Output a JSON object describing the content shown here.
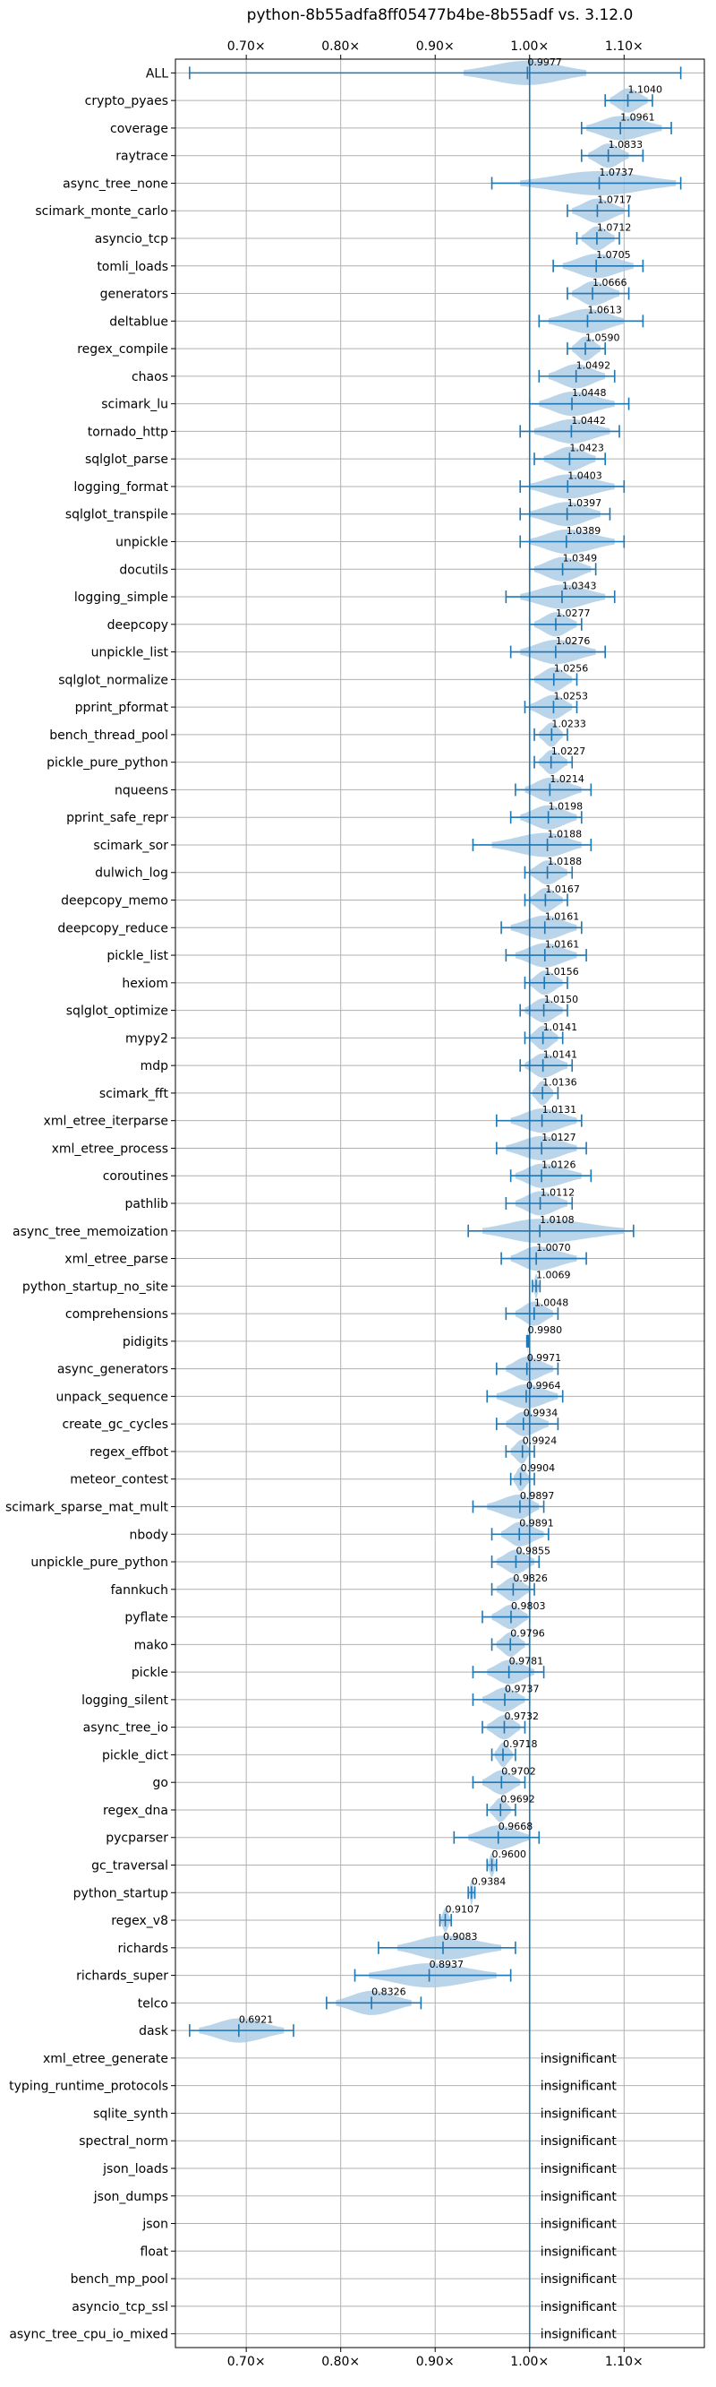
{
  "chart_data": {
    "type": "violin",
    "title": "python-8b55adfa8ff05477b4be-8b55adf vs. 3.12.0",
    "xlabel": "",
    "ylabel": "",
    "xlim": [
      0.625,
      1.185
    ],
    "xticks": [
      0.7,
      0.8,
      0.9,
      1.0,
      1.1
    ],
    "xtick_labels": [
      "0.70×",
      "0.80×",
      "0.90×",
      "1.00×",
      "1.10×"
    ],
    "reference_line": 1.0,
    "grid": true,
    "colors": {
      "violin": "#a9c9e5",
      "bars": "#1f77b4",
      "grid": "#b0b0b0"
    },
    "insignificant_label": "insignificant",
    "benchmarks": [
      {
        "name": "ALL",
        "label": "0.9977",
        "mean": 0.9977,
        "min": 0.64,
        "max": 1.16,
        "lo": 0.93,
        "hi": 1.06
      },
      {
        "name": "crypto_pyaes",
        "label": "1.1040",
        "mean": 1.104,
        "min": 1.08,
        "max": 1.13,
        "lo": 1.085,
        "hi": 1.125
      },
      {
        "name": "coverage",
        "label": "1.0961",
        "mean": 1.0961,
        "min": 1.055,
        "max": 1.15,
        "lo": 1.06,
        "hi": 1.14
      },
      {
        "name": "raytrace",
        "label": "1.0833",
        "mean": 1.0833,
        "min": 1.055,
        "max": 1.12,
        "lo": 1.062,
        "hi": 1.105
      },
      {
        "name": "async_tree_none",
        "label": "1.0737",
        "mean": 1.0737,
        "min": 0.96,
        "max": 1.16,
        "lo": 0.99,
        "hi": 1.155
      },
      {
        "name": "scimark_monte_carlo",
        "label": "1.0717",
        "mean": 1.0717,
        "min": 1.04,
        "max": 1.105,
        "lo": 1.045,
        "hi": 1.1
      },
      {
        "name": "asyncio_tcp",
        "label": "1.0712",
        "mean": 1.0712,
        "min": 1.05,
        "max": 1.095,
        "lo": 1.055,
        "hi": 1.09
      },
      {
        "name": "tomli_loads",
        "label": "1.0705",
        "mean": 1.0705,
        "min": 1.025,
        "max": 1.12,
        "lo": 1.035,
        "hi": 1.11
      },
      {
        "name": "generators",
        "label": "1.0666",
        "mean": 1.0666,
        "min": 1.04,
        "max": 1.105,
        "lo": 1.045,
        "hi": 1.095
      },
      {
        "name": "deltablue",
        "label": "1.0613",
        "mean": 1.0613,
        "min": 1.01,
        "max": 1.12,
        "lo": 1.02,
        "hi": 1.1
      },
      {
        "name": "regex_compile",
        "label": "1.0590",
        "mean": 1.059,
        "min": 1.04,
        "max": 1.08,
        "lo": 1.045,
        "hi": 1.075
      },
      {
        "name": "chaos",
        "label": "1.0492",
        "mean": 1.0492,
        "min": 1.01,
        "max": 1.09,
        "lo": 1.02,
        "hi": 1.08
      },
      {
        "name": "scimark_lu",
        "label": "1.0448",
        "mean": 1.0448,
        "min": 1.0,
        "max": 1.105,
        "lo": 1.01,
        "hi": 1.09
      },
      {
        "name": "tornado_http",
        "label": "1.0442",
        "mean": 1.0442,
        "min": 0.99,
        "max": 1.095,
        "lo": 1.005,
        "hi": 1.085
      },
      {
        "name": "sqlglot_parse",
        "label": "1.0423",
        "mean": 1.0423,
        "min": 1.005,
        "max": 1.08,
        "lo": 1.015,
        "hi": 1.07
      },
      {
        "name": "logging_format",
        "label": "1.0403",
        "mean": 1.0403,
        "min": 0.99,
        "max": 1.1,
        "lo": 1.0,
        "hi": 1.09
      },
      {
        "name": "sqlglot_transpile",
        "label": "1.0397",
        "mean": 1.0397,
        "min": 0.99,
        "max": 1.085,
        "lo": 1.0,
        "hi": 1.075
      },
      {
        "name": "unpickle",
        "label": "1.0389",
        "mean": 1.0389,
        "min": 0.99,
        "max": 1.1,
        "lo": 1.0,
        "hi": 1.09
      },
      {
        "name": "docutils",
        "label": "1.0349",
        "mean": 1.0349,
        "min": 1.0,
        "max": 1.07,
        "lo": 1.005,
        "hi": 1.065
      },
      {
        "name": "logging_simple",
        "label": "1.0343",
        "mean": 1.0343,
        "min": 0.975,
        "max": 1.09,
        "lo": 0.99,
        "hi": 1.08
      },
      {
        "name": "deepcopy",
        "label": "1.0277",
        "mean": 1.0277,
        "min": 1.0,
        "max": 1.055,
        "lo": 1.005,
        "hi": 1.05
      },
      {
        "name": "unpickle_list",
        "label": "1.0276",
        "mean": 1.0276,
        "min": 0.98,
        "max": 1.08,
        "lo": 0.99,
        "hi": 1.07
      },
      {
        "name": "sqlglot_normalize",
        "label": "1.0256",
        "mean": 1.0256,
        "min": 1.0,
        "max": 1.05,
        "lo": 1.005,
        "hi": 1.045
      },
      {
        "name": "pprint_pformat",
        "label": "1.0253",
        "mean": 1.0253,
        "min": 0.995,
        "max": 1.05,
        "lo": 1.0,
        "hi": 1.045
      },
      {
        "name": "bench_thread_pool",
        "label": "1.0233",
        "mean": 1.0233,
        "min": 1.005,
        "max": 1.04,
        "lo": 1.01,
        "hi": 1.035
      },
      {
        "name": "pickle_pure_python",
        "label": "1.0227",
        "mean": 1.0227,
        "min": 1.005,
        "max": 1.045,
        "lo": 1.01,
        "hi": 1.04
      },
      {
        "name": "nqueens",
        "label": "1.0214",
        "mean": 1.0214,
        "min": 0.985,
        "max": 1.065,
        "lo": 0.995,
        "hi": 1.055
      },
      {
        "name": "pprint_safe_repr",
        "label": "1.0198",
        "mean": 1.0198,
        "min": 0.98,
        "max": 1.055,
        "lo": 0.99,
        "hi": 1.05
      },
      {
        "name": "scimark_sor",
        "label": "1.0188",
        "mean": 1.0188,
        "min": 0.94,
        "max": 1.065,
        "lo": 0.96,
        "hi": 1.055
      },
      {
        "name": "dulwich_log",
        "label": "1.0188",
        "mean": 1.0188,
        "min": 0.995,
        "max": 1.045,
        "lo": 1.0,
        "hi": 1.04
      },
      {
        "name": "deepcopy_memo",
        "label": "1.0167",
        "mean": 1.0167,
        "min": 0.995,
        "max": 1.04,
        "lo": 1.0,
        "hi": 1.035
      },
      {
        "name": "deepcopy_reduce",
        "label": "1.0161",
        "mean": 1.0161,
        "min": 0.97,
        "max": 1.055,
        "lo": 0.98,
        "hi": 1.05
      },
      {
        "name": "pickle_list",
        "label": "1.0161",
        "mean": 1.0161,
        "min": 0.975,
        "max": 1.06,
        "lo": 0.985,
        "hi": 1.05
      },
      {
        "name": "hexiom",
        "label": "1.0156",
        "mean": 1.0156,
        "min": 0.995,
        "max": 1.04,
        "lo": 1.0,
        "hi": 1.035
      },
      {
        "name": "sqlglot_optimize",
        "label": "1.0150",
        "mean": 1.015,
        "min": 0.99,
        "max": 1.04,
        "lo": 0.995,
        "hi": 1.035
      },
      {
        "name": "mypy2",
        "label": "1.0141",
        "mean": 1.0141,
        "min": 0.995,
        "max": 1.035,
        "lo": 1.0,
        "hi": 1.03
      },
      {
        "name": "mdp",
        "label": "1.0141",
        "mean": 1.0141,
        "min": 0.99,
        "max": 1.045,
        "lo": 0.995,
        "hi": 1.04
      },
      {
        "name": "scimark_fft",
        "label": "1.0136",
        "mean": 1.0136,
        "min": 1.0,
        "max": 1.03,
        "lo": 1.003,
        "hi": 1.025
      },
      {
        "name": "xml_etree_iterparse",
        "label": "1.0131",
        "mean": 1.0131,
        "min": 0.965,
        "max": 1.055,
        "lo": 0.98,
        "hi": 1.05
      },
      {
        "name": "xml_etree_process",
        "label": "1.0127",
        "mean": 1.0127,
        "min": 0.965,
        "max": 1.06,
        "lo": 0.975,
        "hi": 1.05
      },
      {
        "name": "coroutines",
        "label": "1.0126",
        "mean": 1.0126,
        "min": 0.98,
        "max": 1.065,
        "lo": 0.985,
        "hi": 1.055
      },
      {
        "name": "pathlib",
        "label": "1.0112",
        "mean": 1.0112,
        "min": 0.975,
        "max": 1.045,
        "lo": 0.985,
        "hi": 1.04
      },
      {
        "name": "async_tree_memoization",
        "label": "1.0108",
        "mean": 1.0108,
        "min": 0.935,
        "max": 1.11,
        "lo": 0.95,
        "hi": 1.1
      },
      {
        "name": "xml_etree_parse",
        "label": "1.0070",
        "mean": 1.007,
        "min": 0.97,
        "max": 1.06,
        "lo": 0.98,
        "hi": 1.05
      },
      {
        "name": "python_startup_no_site",
        "label": "1.0069",
        "mean": 1.0069,
        "min": 1.003,
        "max": 1.011,
        "lo": 1.004,
        "hi": 1.01
      },
      {
        "name": "comprehensions",
        "label": "1.0048",
        "mean": 1.0048,
        "min": 0.975,
        "max": 1.03,
        "lo": 0.985,
        "hi": 1.025
      },
      {
        "name": "pidigits",
        "label": "0.9980",
        "mean": 0.998,
        "min": 0.997,
        "max": 0.999,
        "lo": 0.9975,
        "hi": 0.9985
      },
      {
        "name": "async_generators",
        "label": "0.9971",
        "mean": 0.9971,
        "min": 0.965,
        "max": 1.03,
        "lo": 0.975,
        "hi": 1.025
      },
      {
        "name": "unpack_sequence",
        "label": "0.9964",
        "mean": 0.9964,
        "min": 0.955,
        "max": 1.035,
        "lo": 0.965,
        "hi": 1.03
      },
      {
        "name": "create_gc_cycles",
        "label": "0.9934",
        "mean": 0.9934,
        "min": 0.965,
        "max": 1.03,
        "lo": 0.975,
        "hi": 1.02
      },
      {
        "name": "regex_effbot",
        "label": "0.9924",
        "mean": 0.9924,
        "min": 0.975,
        "max": 1.005,
        "lo": 0.98,
        "hi": 1.0
      },
      {
        "name": "meteor_contest",
        "label": "0.9904",
        "mean": 0.9904,
        "min": 0.98,
        "max": 1.005,
        "lo": 0.983,
        "hi": 1.0
      },
      {
        "name": "scimark_sparse_mat_mult",
        "label": "0.9897",
        "mean": 0.9897,
        "min": 0.94,
        "max": 1.015,
        "lo": 0.955,
        "hi": 1.01
      },
      {
        "name": "nbody",
        "label": "0.9891",
        "mean": 0.9891,
        "min": 0.96,
        "max": 1.02,
        "lo": 0.97,
        "hi": 1.015
      },
      {
        "name": "unpickle_pure_python",
        "label": "0.9855",
        "mean": 0.9855,
        "min": 0.96,
        "max": 1.01,
        "lo": 0.965,
        "hi": 1.005
      },
      {
        "name": "fannkuch",
        "label": "0.9826",
        "mean": 0.9826,
        "min": 0.96,
        "max": 1.005,
        "lo": 0.965,
        "hi": 1.0
      },
      {
        "name": "pyflate",
        "label": "0.9803",
        "mean": 0.9803,
        "min": 0.95,
        "max": 1.0,
        "lo": 0.96,
        "hi": 0.998
      },
      {
        "name": "mako",
        "label": "0.9796",
        "mean": 0.9796,
        "min": 0.96,
        "max": 1.0,
        "lo": 0.965,
        "hi": 0.995
      },
      {
        "name": "pickle",
        "label": "0.9781",
        "mean": 0.9781,
        "min": 0.94,
        "max": 1.015,
        "lo": 0.955,
        "hi": 1.005
      },
      {
        "name": "logging_silent",
        "label": "0.9737",
        "mean": 0.9737,
        "min": 0.94,
        "max": 1.0,
        "lo": 0.95,
        "hi": 0.995
      },
      {
        "name": "async_tree_io",
        "label": "0.9732",
        "mean": 0.9732,
        "min": 0.95,
        "max": 0.995,
        "lo": 0.955,
        "hi": 0.99
      },
      {
        "name": "pickle_dict",
        "label": "0.9718",
        "mean": 0.9718,
        "min": 0.96,
        "max": 0.985,
        "lo": 0.963,
        "hi": 0.982
      },
      {
        "name": "go",
        "label": "0.9702",
        "mean": 0.9702,
        "min": 0.94,
        "max": 0.995,
        "lo": 0.95,
        "hi": 0.99
      },
      {
        "name": "regex_dna",
        "label": "0.9692",
        "mean": 0.9692,
        "min": 0.955,
        "max": 0.985,
        "lo": 0.958,
        "hi": 0.98
      },
      {
        "name": "pycparser",
        "label": "0.9668",
        "mean": 0.9668,
        "min": 0.92,
        "max": 1.01,
        "lo": 0.935,
        "hi": 1.0
      },
      {
        "name": "gc_traversal",
        "label": "0.9600",
        "mean": 0.96,
        "min": 0.955,
        "max": 0.965,
        "lo": 0.956,
        "hi": 0.964
      },
      {
        "name": "python_startup",
        "label": "0.9384",
        "mean": 0.9384,
        "min": 0.935,
        "max": 0.942,
        "lo": 0.936,
        "hi": 0.941
      },
      {
        "name": "regex_v8",
        "label": "0.9107",
        "mean": 0.9107,
        "min": 0.905,
        "max": 0.917,
        "lo": 0.906,
        "hi": 0.916
      },
      {
        "name": "richards",
        "label": "0.9083",
        "mean": 0.9083,
        "min": 0.84,
        "max": 0.985,
        "lo": 0.86,
        "hi": 0.97
      },
      {
        "name": "richards_super",
        "label": "0.8937",
        "mean": 0.8937,
        "min": 0.815,
        "max": 0.98,
        "lo": 0.83,
        "hi": 0.965
      },
      {
        "name": "telco",
        "label": "0.8326",
        "mean": 0.8326,
        "min": 0.785,
        "max": 0.885,
        "lo": 0.795,
        "hi": 0.875
      },
      {
        "name": "dask",
        "label": "0.6921",
        "mean": 0.6921,
        "min": 0.64,
        "max": 0.75,
        "lo": 0.65,
        "hi": 0.74
      },
      {
        "name": "xml_etree_generate",
        "insignificant": true
      },
      {
        "name": "typing_runtime_protocols",
        "insignificant": true
      },
      {
        "name": "sqlite_synth",
        "insignificant": true
      },
      {
        "name": "spectral_norm",
        "insignificant": true
      },
      {
        "name": "json_loads",
        "insignificant": true
      },
      {
        "name": "json_dumps",
        "insignificant": true
      },
      {
        "name": "json",
        "insignificant": true
      },
      {
        "name": "float",
        "insignificant": true
      },
      {
        "name": "bench_mp_pool",
        "insignificant": true
      },
      {
        "name": "asyncio_tcp_ssl",
        "insignificant": true
      },
      {
        "name": "async_tree_cpu_io_mixed",
        "insignificant": true
      }
    ]
  }
}
